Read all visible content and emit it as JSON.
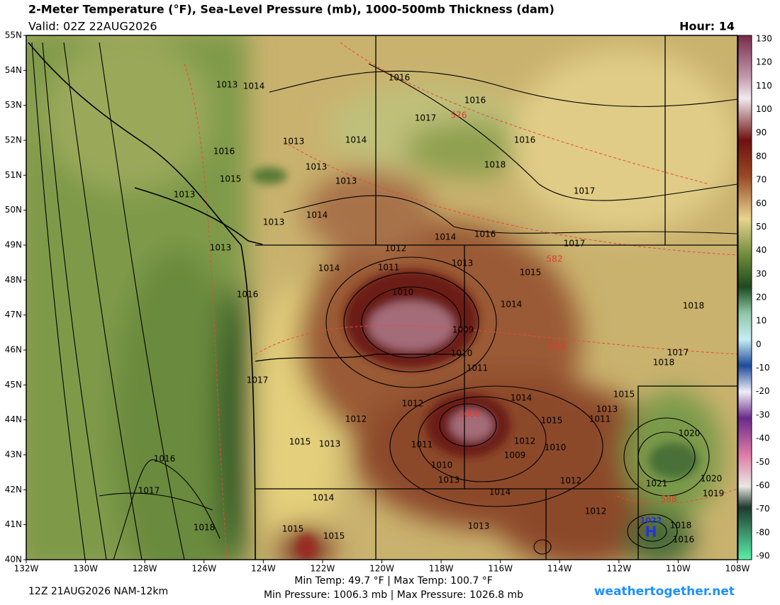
{
  "header": {
    "title": "2-Meter Temperature (°F), Sea-Level Pressure (mb), 1000-500mb Thickness (dam)",
    "valid": "Valid: 02Z 22AUG2026",
    "hour": "Hour: 14"
  },
  "lat_labels": [
    "55N",
    "54N",
    "53N",
    "52N",
    "51N",
    "50N",
    "49N",
    "48N",
    "47N",
    "46N",
    "45N",
    "44N",
    "43N",
    "42N",
    "41N",
    "40N"
  ],
  "lon_labels": [
    "132W",
    "130W",
    "128W",
    "126W",
    "124W",
    "122W",
    "120W",
    "118W",
    "116W",
    "114W",
    "112W",
    "110W",
    "108W"
  ],
  "colorbar_labels": [
    130,
    120,
    110,
    100,
    90,
    80,
    70,
    60,
    50,
    40,
    30,
    20,
    10,
    0,
    -10,
    -20,
    -30,
    -40,
    -50,
    -60,
    -70,
    -80,
    -90
  ],
  "isobar_labels": [
    "1013",
    "1014",
    "1016",
    "1016",
    "1017",
    "1016",
    "1018",
    "1017",
    "1013",
    "1014",
    "1016",
    "1013",
    "1015",
    "1013",
    "1013",
    "1014",
    "1013",
    "1013",
    "1014",
    "1016",
    "1017",
    "1012",
    "1011",
    "1013",
    "1014",
    "1015",
    "1016",
    "1010",
    "1014",
    "1018",
    "1009",
    "1010",
    "1011",
    "1017",
    "1018",
    "1017",
    "1014",
    "1015",
    "1012",
    "1013",
    "1012",
    "1015",
    "1011",
    "1020",
    "1015",
    "1013",
    "1011",
    "1012",
    "1010",
    "1016",
    "1009",
    "1010",
    "1021",
    "1020",
    "1013",
    "1012",
    "1019",
    "1017",
    "1014",
    "1014",
    "1012",
    "1018",
    "1013",
    "1015",
    "1018",
    "1015",
    "1016"
  ],
  "thickness_labels": [
    "576",
    "582",
    "588",
    "1006",
    "588"
  ],
  "pressure_centers": [
    "1022",
    "H"
  ],
  "footer": {
    "run": "12Z 21AUG2026 NAM-12km",
    "temps": "Min Temp:  49.7 °F | Max Temp: 100.7 °F",
    "pressures": "Min Pressure: 1006.3 mb | Max Pressure: 1026.8 mb",
    "site": "weathertogether.net"
  }
}
